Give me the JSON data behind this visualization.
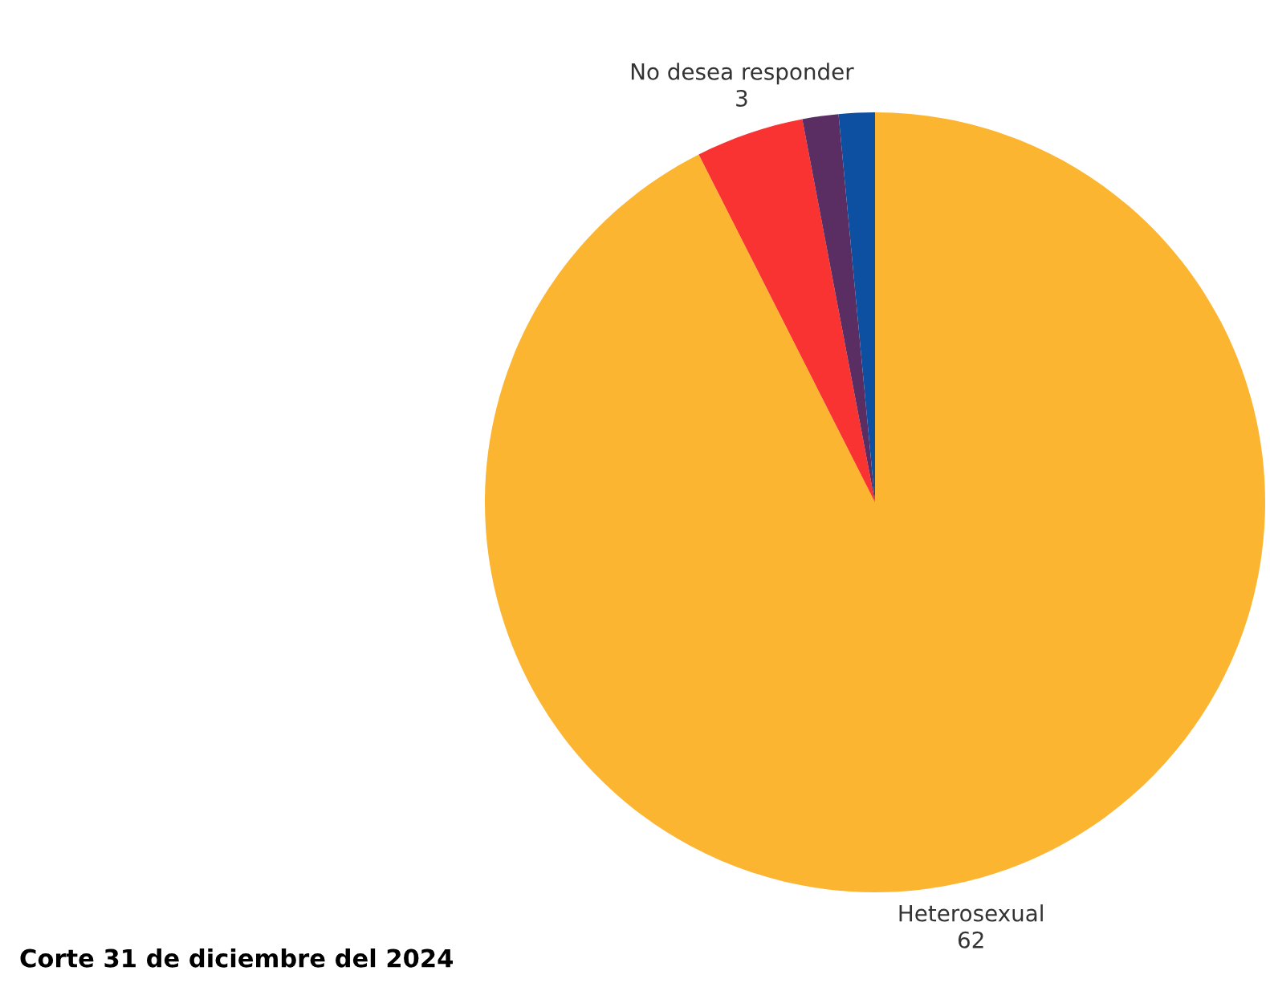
{
  "chart_data": {
    "type": "pie",
    "categories": [
      "Heterosexual",
      "No desea responder",
      null,
      null
    ],
    "values": [
      62,
      3,
      1,
      1
    ],
    "colors": [
      "#fbb531",
      "#f93232",
      "#5a2d63",
      "#0d4fa0"
    ],
    "value_labels": [
      "62",
      "3",
      null,
      null
    ],
    "annotations": [
      "Corte 31 de diciembre del 2024"
    ]
  }
}
